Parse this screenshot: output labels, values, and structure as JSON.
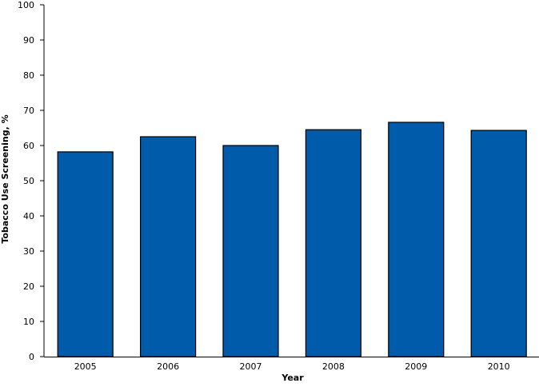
{
  "chart_data": {
    "type": "bar",
    "title": "",
    "xlabel": "Year",
    "ylabel": "Tobacco Use Screening, %",
    "categories": [
      "2005",
      "2006",
      "2007",
      "2008",
      "2009",
      "2010"
    ],
    "values": [
      58.2,
      62.5,
      60.0,
      64.5,
      66.6,
      64.3
    ],
    "ylim": [
      0,
      100
    ],
    "yticks": [
      "0",
      "10",
      "20",
      "30",
      "40",
      "50",
      "60",
      "70",
      "80",
      "90",
      "100"
    ],
    "grid": false,
    "legend": "none",
    "bar_color": "#005BAA",
    "bar_edge_color": "#000000"
  }
}
